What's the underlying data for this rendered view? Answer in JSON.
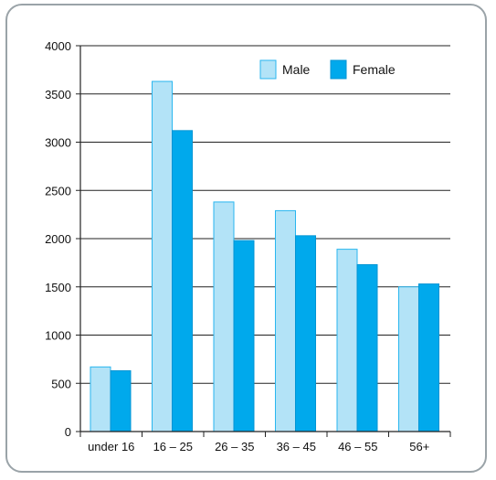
{
  "colors": {
    "male": "#b3e3f7",
    "female": "#00a9ec",
    "male_stroke": "#29b6ef",
    "female_stroke": "#0094d4",
    "grid": "#222222"
  },
  "legend": {
    "male_label": "Male",
    "female_label": "Female"
  },
  "chart_data": {
    "type": "bar",
    "categories": [
      "under 16",
      "16 – 25",
      "26 – 35",
      "36 – 45",
      "46 – 55",
      "56+"
    ],
    "series": [
      {
        "name": "Male",
        "values": [
          670,
          3630,
          2380,
          2290,
          1890,
          1500
        ]
      },
      {
        "name": "Female",
        "values": [
          630,
          3120,
          1980,
          2030,
          1730,
          1530
        ]
      }
    ],
    "title": "",
    "xlabel": "",
    "ylabel": "",
    "ylim": [
      0,
      4000
    ],
    "yticks": [
      0,
      500,
      1000,
      1500,
      2000,
      2500,
      3000,
      3500,
      4000
    ],
    "grid": true,
    "legend_position": "top-right"
  }
}
